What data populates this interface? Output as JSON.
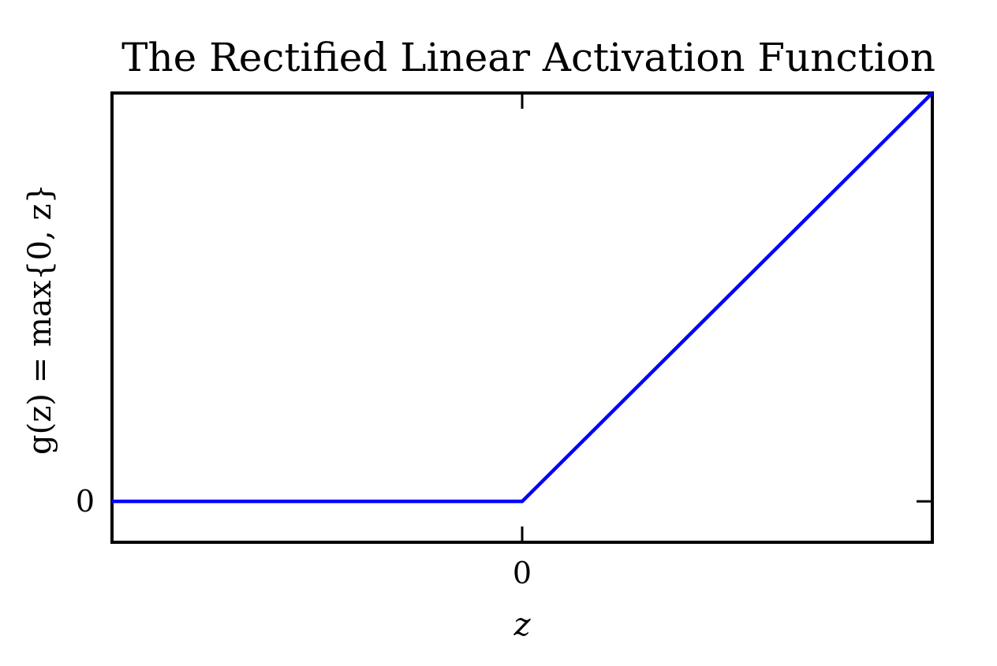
{
  "chart_data": {
    "type": "line",
    "title": "The Rectified Linear Activation Function",
    "xlabel": "z",
    "ylabel": "g(z) = max{0, z}",
    "x_ticks": [
      0
    ],
    "x_tick_labels": [
      "0"
    ],
    "y_ticks": [
      0
    ],
    "y_tick_labels": [
      "0"
    ],
    "xlim": [
      -1,
      1
    ],
    "ylim": [
      -0.1,
      1
    ],
    "grid": false,
    "legend": "none",
    "series": [
      {
        "color": "#0000ff",
        "x": [
          -1,
          0,
          1
        ],
        "y": [
          0,
          0,
          1
        ]
      }
    ]
  }
}
